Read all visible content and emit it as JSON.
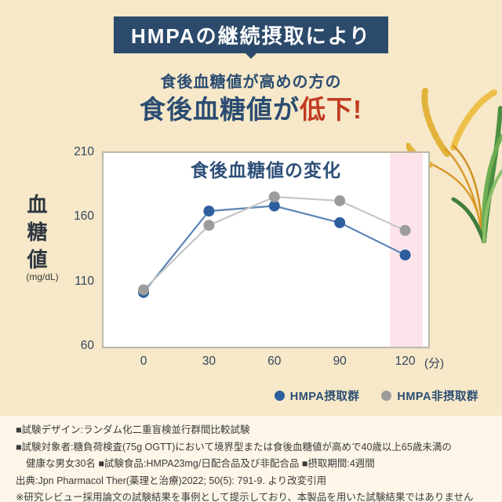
{
  "page": {
    "bg_main": "#f6e8c8",
    "bg_footer": "#fdf6e9",
    "accent_navy": "#2c4a6b",
    "accent_red": "#c23a21"
  },
  "header": {
    "banner": "HMPAの継続摂取により",
    "subtitle": "食後血糖値が高めの方の",
    "headline_navy": "食後血糖値が",
    "headline_red": "低下!"
  },
  "chart_data": {
    "type": "line",
    "title": "食後血糖値の変化",
    "ylabel": "血糖値",
    "ylabel_unit": "(mg/dL)",
    "xunit": "(分)",
    "x": [
      0,
      30,
      60,
      90,
      120
    ],
    "yticks": [
      210,
      160,
      110,
      60
    ],
    "ylim": [
      60,
      210
    ],
    "grid": false,
    "legend_position": "bottom-right",
    "series": [
      {
        "name": "HMPA摂取群",
        "dot_color": "#2d5f9e",
        "line_color": "#5b84b5",
        "values": [
          102,
          165,
          169,
          156,
          131
        ]
      },
      {
        "name": "HMPA非摂取群",
        "dot_color": "#9c9c9c",
        "line_color": "#c6c6c6",
        "values": [
          104,
          154,
          176,
          173,
          150
        ]
      }
    ],
    "highlight_band": {
      "x_from": 113,
      "x_to": 128,
      "color": "#fce4ea"
    }
  },
  "footer": {
    "lines": [
      "■試験デザイン:ランダム化二重盲検並行群間比較試験",
      "■試験対象者:糖負荷検査(75g OGTT)において境界型または食後血糖値が高めで40歳以上65歳未満の",
      "健康な男女30名 ■試験食品:HMPA23mg/日配合品及び非配合品 ■摂取期間:4週間",
      "出典:Jpn Pharmacol Ther(薬理と治療)2022; 50(5): 791-9. より改変引用",
      "※研究レビュー採用論文の試験結果を事例として提示しており、本製品を用いた試験結果ではありません"
    ]
  }
}
